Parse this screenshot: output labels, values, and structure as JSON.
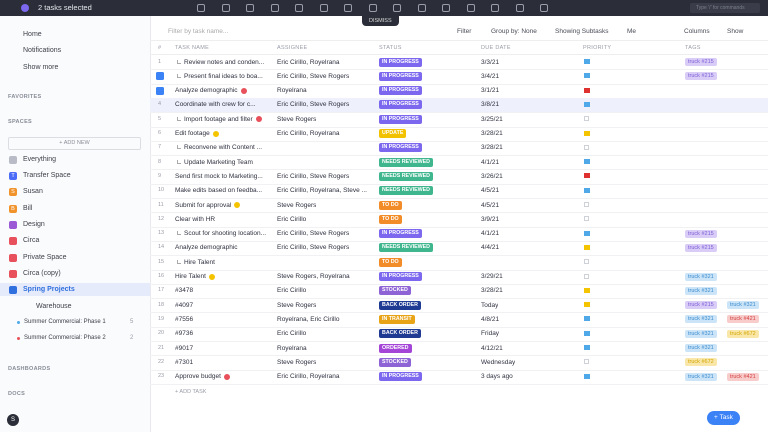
{
  "top_bar": {
    "selection": "2 tasks selected",
    "dismiss": "DISMISS",
    "search": "Type '/' for commands"
  },
  "sidebar": {
    "nav": [
      "Home",
      "Notifications",
      "Show more"
    ],
    "favorites": "FAVORITES",
    "spaces_label": "SPACES",
    "add_new": "+ ADD NEW",
    "everything": "Everything",
    "spaces": [
      {
        "name": "Transfer Space",
        "initial": "T",
        "color": "#4a6cf7"
      },
      {
        "name": "Susan",
        "initial": "S",
        "color": "#f0932b"
      },
      {
        "name": "Bill",
        "initial": "B",
        "color": "#f0932b"
      },
      {
        "name": "Design",
        "color": "#9b59d6"
      },
      {
        "name": "Circa",
        "color": "#e8505b"
      },
      {
        "name": "Private Space",
        "color": "#e8505b"
      },
      {
        "name": "Circa (copy)",
        "color": "#e8505b"
      },
      {
        "name": "Spring Projects",
        "color": "#2f6fde",
        "selected": true
      }
    ],
    "folder": "Warehouse",
    "lists": [
      {
        "name": "Summer Commercial: Phase 1",
        "count": "5"
      },
      {
        "name": "Summer Commercial: Phase 2",
        "count": "2"
      }
    ],
    "dashboards": "DASHBOARDS",
    "docs": "DOCS",
    "avatar": "S"
  },
  "toolbar": {
    "filter_placeholder": "Filter by task name...",
    "filter": "Filter",
    "group": "Group by: None",
    "subtasks": "Showing Subtasks",
    "me": "Me",
    "columns": "Columns",
    "show": "Show"
  },
  "table": {
    "headers": [
      "#",
      "TASK NAME",
      "ASSIGNEE",
      "STATUS",
      "DUE DATE",
      "PRIORITY",
      "TAGS"
    ],
    "rows": [
      {
        "num": "1",
        "name": "Review notes and conden...",
        "subtask": true,
        "assignee": "Eric Cirillo, Royelrana",
        "status": "IN PROGRESS",
        "status_color": "#7b68ee",
        "due": "3/3/21",
        "flag": "#4fa9e8",
        "tags": [
          {
            "text": "truck #215",
            "bg": "#d9cdf7",
            "fg": "#7b5cd6"
          }
        ]
      },
      {
        "num": "2",
        "name": "Present final ideas to boa...",
        "subtask": true,
        "selected": true,
        "assignee": "Eric Cirillo, Steve Rogers",
        "status": "IN PROGRESS",
        "status_color": "#7b68ee",
        "due": "3/4/21",
        "flag": "#4fa9e8",
        "tags": [
          {
            "text": "truck #215",
            "bg": "#d9cdf7",
            "fg": "#7b5cd6"
          }
        ]
      },
      {
        "num": "3",
        "name": "Analyze demographic",
        "badge": "#e8505b",
        "selected": true,
        "assignee": "Royelrana",
        "status": "IN PROGRESS",
        "status_color": "#7b68ee",
        "due": "3/1/21",
        "flag": "#e03131",
        "tags": []
      },
      {
        "num": "4",
        "name": "Coordinate with crew for c...",
        "hover": true,
        "assignee": "Eric Cirillo, Steve Rogers",
        "status": "IN PROGRESS",
        "status_color": "#7b68ee",
        "due": "3/8/21",
        "flag": "#4fa9e8",
        "tags": []
      },
      {
        "num": "5",
        "name": "Import footage and filter",
        "subtask": true,
        "badge": "#e8505b",
        "assignee": "Steve Rogers",
        "status": "IN PROGRESS",
        "status_color": "#7b68ee",
        "due": "3/25/21",
        "flag": null,
        "tags": []
      },
      {
        "num": "6",
        "name": "Edit footage",
        "badge": "#f5c400",
        "assignee": "Eric Cirillo, Royelrana",
        "status": "UPDATE",
        "status_color": "#f2c200",
        "due": "3/28/21",
        "flag": "#f5c400",
        "tags": []
      },
      {
        "num": "7",
        "name": "Reconvene with Content ...",
        "subtask": true,
        "assignee": "",
        "status": "IN PROGRESS",
        "status_color": "#7b68ee",
        "due": "3/28/21",
        "flag": null,
        "tags": []
      },
      {
        "num": "8",
        "name": "Update Marketing Team",
        "subtask": true,
        "assignee": "",
        "status": "NEEDS REVIEWED",
        "status_color": "#3fb68e",
        "due": "4/1/21",
        "flag": "#4fa9e8",
        "tags": []
      },
      {
        "num": "9",
        "name": "Send first mock to Marketing...",
        "assignee": "Eric Cirillo, Steve Rogers",
        "status": "NEEDS REVIEWED",
        "status_color": "#3fb68e",
        "due": "3/26/21",
        "flag": "#e03131",
        "tags": []
      },
      {
        "num": "10",
        "name": "Make edits based on feedba...",
        "assignee": "Eric Cirillo, Royelrana, Steve ...",
        "status": "NEEDS REVIEWED",
        "status_color": "#3fb68e",
        "due": "4/5/21",
        "flag": "#4fa9e8",
        "tags": []
      },
      {
        "num": "11",
        "name": "Submit for approval",
        "badge": "#f5c400",
        "assignee": "Steve Rogers",
        "status": "TO DO",
        "status_color": "#f28c28",
        "due": "4/5/21",
        "flag": null,
        "tags": []
      },
      {
        "num": "12",
        "name": "Clear with HR",
        "assignee": "Eric Cirillo",
        "status": "TO DO",
        "status_color": "#f28c28",
        "due": "3/9/21",
        "flag": null,
        "tags": []
      },
      {
        "num": "13",
        "name": "Scout for shooting location...",
        "subtask": true,
        "assignee": "Eric Cirillo, Steve Rogers",
        "status": "IN PROGRESS",
        "status_color": "#7b68ee",
        "due": "4/1/21",
        "flag": "#4fa9e8",
        "tags": [
          {
            "text": "truck #215",
            "bg": "#d9cdf7",
            "fg": "#7b5cd6"
          }
        ]
      },
      {
        "num": "14",
        "name": "Analyze demographic",
        "assignee": "Eric Cirillo, Steve Rogers",
        "status": "NEEDS REVIEWED",
        "status_color": "#3fb68e",
        "due": "4/4/21",
        "flag": "#f5c400",
        "tags": [
          {
            "text": "truck #215",
            "bg": "#d9cdf7",
            "fg": "#7b5cd6"
          }
        ]
      },
      {
        "num": "15",
        "name": "Hire Talent",
        "subtask": true,
        "assignee": "",
        "status": "TO DO",
        "status_color": "#f28c28",
        "due": "",
        "flag": null,
        "tags": []
      },
      {
        "num": "16",
        "name": "Hire Talent",
        "badge": "#f5c400",
        "assignee": "Steve Rogers, Royelrana",
        "status": "IN PROGRESS",
        "status_color": "#7b68ee",
        "due": "3/29/21",
        "flag": null,
        "tags": [
          {
            "text": "truck #321",
            "bg": "#cbe4f7",
            "fg": "#3a8bd0"
          }
        ]
      },
      {
        "num": "17",
        "name": "#3478",
        "assignee": "Eric Cirillo",
        "status": "STOCKED",
        "status_color": "#8e63d6",
        "due": "3/28/21",
        "flag": "#f5c400",
        "tags": [
          {
            "text": "truck #321",
            "bg": "#cbe4f7",
            "fg": "#3a8bd0"
          }
        ]
      },
      {
        "num": "18",
        "name": "#4097",
        "assignee": "Steve Rogers",
        "status": "BACK ORDER",
        "status_color": "#1f3a93",
        "due": "Today",
        "flag": "#f5c400",
        "tags": [
          {
            "text": "truck #215",
            "bg": "#d9cdf7",
            "fg": "#7b5cd6"
          },
          {
            "text": "truck #321",
            "bg": "#cbe4f7",
            "fg": "#3a8bd0"
          }
        ]
      },
      {
        "num": "19",
        "name": "#7556",
        "assignee": "Royelrana, Eric Cirillo",
        "status": "IN TRANSIT",
        "status_color": "#e8a317",
        "due": "4/8/21",
        "flag": "#4fa9e8",
        "tags": [
          {
            "text": "truck #321",
            "bg": "#cbe4f7",
            "fg": "#3a8bd0"
          },
          {
            "text": "truck #421",
            "bg": "#f9cccc",
            "fg": "#d04040"
          }
        ]
      },
      {
        "num": "20",
        "name": "#9736",
        "assignee": "Eric Cirillo",
        "status": "BACK ORDER",
        "status_color": "#1f3a93",
        "due": "Friday",
        "flag": "#4fa9e8",
        "tags": [
          {
            "text": "truck #321",
            "bg": "#cbe4f7",
            "fg": "#3a8bd0"
          },
          {
            "text": "truck #672",
            "bg": "#f8e7a8",
            "fg": "#d4a400"
          }
        ]
      },
      {
        "num": "21",
        "name": "#9017",
        "assignee": "Royelrana",
        "status": "ORDERED",
        "status_color": "#a445d8",
        "due": "4/12/21",
        "flag": "#4fa9e8",
        "tags": [
          {
            "text": "truck #321",
            "bg": "#cbe4f7",
            "fg": "#3a8bd0"
          }
        ]
      },
      {
        "num": "22",
        "name": "#7301",
        "assignee": "Steve Rogers",
        "status": "STOCKED",
        "status_color": "#8e63d6",
        "due": "Wednesday",
        "flag": null,
        "tags": [
          {
            "text": "truck #672",
            "bg": "#f8e7a8",
            "fg": "#d4a400"
          }
        ]
      },
      {
        "num": "23",
        "name": "Approve budget",
        "badge": "#e8505b",
        "assignee": "Eric Cirillo, Royelrana",
        "status": "IN PROGRESS",
        "status_color": "#7b68ee",
        "due": "3 days ago",
        "flag": "#4fa9e8",
        "tags": [
          {
            "text": "truck #321",
            "bg": "#cbe4f7",
            "fg": "#3a8bd0"
          },
          {
            "text": "truck #421",
            "bg": "#f9cccc",
            "fg": "#d04040"
          }
        ]
      }
    ],
    "add_task": "+ ADD TASK"
  },
  "task_button": "+ Task"
}
